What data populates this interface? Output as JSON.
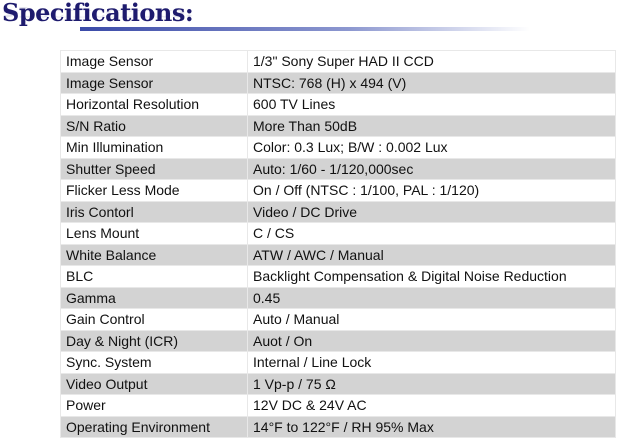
{
  "title": "Specifications:",
  "rows": [
    [
      "Image Sensor",
      "1/3\" Sony Super HAD II CCD"
    ],
    [
      "Image Sensor",
      "NTSC: 768 (H) x 494 (V)"
    ],
    [
      "Horizontal Resolution",
      "600 TV Lines"
    ],
    [
      "S/N Ratio",
      "More Than 50dB"
    ],
    [
      "Min Illumination",
      "Color: 0.3 Lux; B/W : 0.002 Lux"
    ],
    [
      "Shutter Speed",
      "Auto: 1/60 - 1/120,000sec"
    ],
    [
      "Flicker Less Mode",
      "On / Off (NTSC : 1/100, PAL : 1/120)"
    ],
    [
      "Iris Contorl",
      "Video / DC Drive"
    ],
    [
      "Lens Mount",
      "C / CS"
    ],
    [
      "White Balance",
      "ATW / AWC / Manual"
    ],
    [
      "BLC",
      "Backlight Compensation & Digital Noise Reduction"
    ],
    [
      "Gamma",
      "0.45"
    ],
    [
      "Gain Control",
      "Auto / Manual"
    ],
    [
      "Day & Night (ICR)",
      "Auot / On"
    ],
    [
      "Sync. System",
      "Internal / Line Lock"
    ],
    [
      "Video Output",
      "1 Vp-p / 75 Ω"
    ],
    [
      "Power",
      "12V DC & 24V AC"
    ],
    [
      "Operating Environment",
      "14°F to 122°F / RH 95% Max"
    ]
  ]
}
